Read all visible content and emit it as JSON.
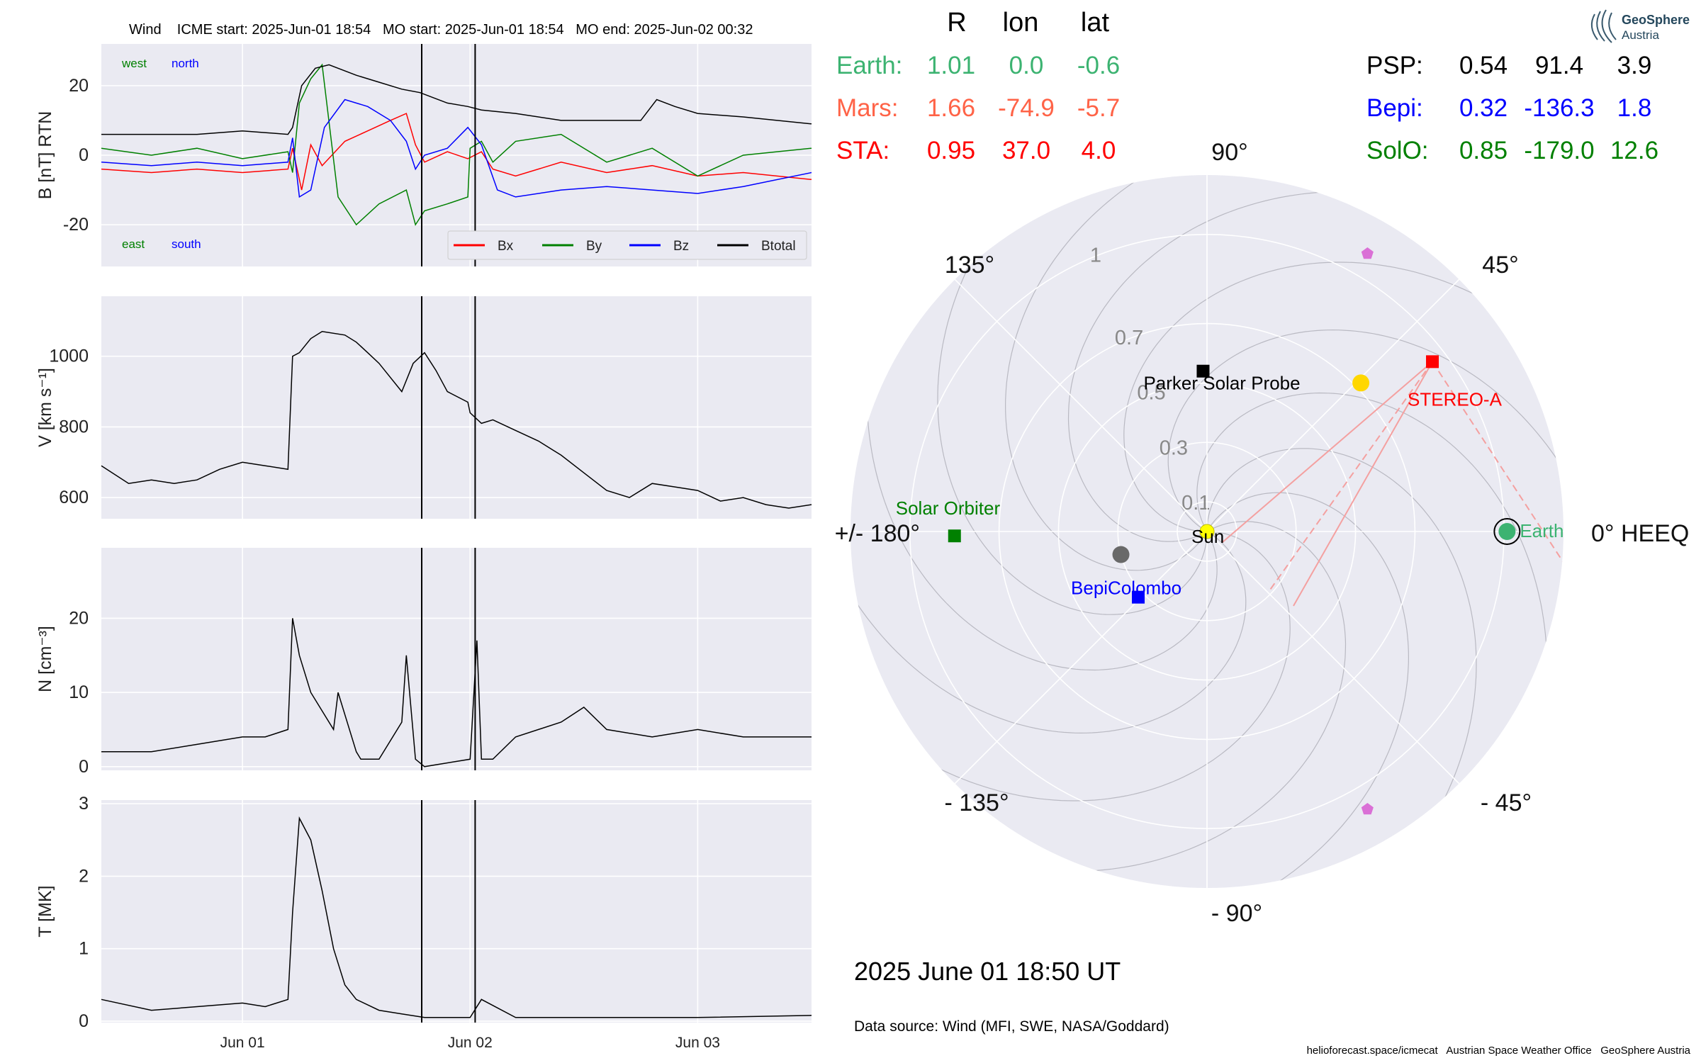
{
  "header": {
    "left_text": "Wind    ICME start: 2025-Jun-01 18:54   MO start: 2025-Jun-01 18:54   MO end: 2025-Jun-02 00:32"
  },
  "colors": {
    "panel_bg": "#EAEAF2",
    "grid": "#FFFFFF",
    "bx": "#FF0000",
    "by": "#008000",
    "bz": "#0000FF",
    "btot": "#000000",
    "earth": "#3CB371",
    "mars": "#FF6347",
    "sta": "#FF0000",
    "psp": "#000000",
    "bepi": "#0000FF",
    "solo": "#008000",
    "venus": "#FFD700",
    "mercury": "#696969",
    "sun": "#FFFF00",
    "comet": "#DA70D6"
  },
  "chart_data": [
    {
      "type": "line",
      "panel": "magnetic-field",
      "ylabel": "B [nT] RTN",
      "ylim": [
        -32,
        32
      ],
      "yticks": [
        -20,
        0,
        20
      ],
      "xlim": [
        -0.62,
        2.5
      ],
      "x_unit": "days since 2025-Jun-01 00:00",
      "annotations": {
        "west": "west",
        "north": "north",
        "east": "east",
        "south": "south"
      },
      "legend": [
        "Bx",
        "By",
        "Bz",
        "Btotal"
      ],
      "legend_position": "lower-right",
      "series": [
        {
          "name": "Bx",
          "color": "#FF0000",
          "x": [
            -0.62,
            -0.4,
            -0.2,
            0.0,
            0.2,
            0.22,
            0.26,
            0.3,
            0.35,
            0.45,
            0.55,
            0.65,
            0.72,
            0.76,
            0.8,
            0.9,
            0.99,
            1.05,
            1.1,
            1.2,
            1.4,
            1.6,
            1.8,
            2.0,
            2.2,
            2.5
          ],
          "y": [
            -4,
            -5,
            -4,
            -5,
            -4,
            2,
            -10,
            3,
            -3,
            4,
            7,
            10,
            12,
            3,
            -2,
            1,
            -1,
            1,
            -4,
            -6,
            -2,
            -5,
            -3,
            -6,
            -5,
            -7
          ]
        },
        {
          "name": "By",
          "color": "#008000",
          "x": [
            -0.62,
            -0.4,
            -0.2,
            0.0,
            0.2,
            0.22,
            0.25,
            0.3,
            0.35,
            0.42,
            0.5,
            0.6,
            0.72,
            0.76,
            0.8,
            0.9,
            0.99,
            1.0,
            1.05,
            1.1,
            1.2,
            1.4,
            1.6,
            1.8,
            2.0,
            2.2,
            2.5
          ],
          "y": [
            2,
            0,
            2,
            -1,
            1,
            -5,
            15,
            22,
            26,
            -12,
            -20,
            -14,
            -10,
            -20,
            -16,
            -14,
            -12,
            2,
            4,
            -2,
            4,
            6,
            -2,
            2,
            -6,
            0,
            2
          ]
        },
        {
          "name": "Bz",
          "color": "#0000FF",
          "x": [
            -0.62,
            -0.4,
            -0.2,
            0.0,
            0.2,
            0.22,
            0.25,
            0.3,
            0.36,
            0.45,
            0.55,
            0.65,
            0.72,
            0.76,
            0.8,
            0.9,
            0.99,
            1.05,
            1.12,
            1.2,
            1.4,
            1.6,
            1.8,
            2.0,
            2.2,
            2.5
          ],
          "y": [
            -2,
            -3,
            -2,
            -3,
            -2,
            5,
            -12,
            -10,
            8,
            16,
            14,
            10,
            4,
            -4,
            0,
            2,
            8,
            3,
            -10,
            -12,
            -10,
            -9,
            -10,
            -11,
            -9,
            -5
          ]
        },
        {
          "name": "Btotal",
          "color": "#000000",
          "x": [
            -0.62,
            -0.4,
            -0.2,
            0.0,
            0.2,
            0.22,
            0.26,
            0.32,
            0.38,
            0.5,
            0.6,
            0.7,
            0.78,
            0.9,
            0.99,
            1.05,
            1.2,
            1.4,
            1.6,
            1.75,
            1.82,
            1.9,
            2.0,
            2.2,
            2.5
          ],
          "y": [
            6,
            6,
            6,
            7,
            6,
            8,
            20,
            25,
            26,
            23,
            21,
            19,
            18,
            15,
            14,
            13,
            12,
            10,
            10,
            10,
            16,
            14,
            12,
            11,
            9
          ]
        }
      ]
    },
    {
      "type": "line",
      "panel": "speed",
      "ylabel": "V [km s⁻¹]",
      "ylim": [
        540,
        1170
      ],
      "yticks": [
        600,
        800,
        1000
      ],
      "xlim": [
        -0.62,
        2.5
      ],
      "series": [
        {
          "name": "V",
          "color": "#000000",
          "x": [
            -0.62,
            -0.5,
            -0.4,
            -0.3,
            -0.2,
            -0.1,
            0.0,
            0.1,
            0.2,
            0.22,
            0.25,
            0.3,
            0.35,
            0.45,
            0.5,
            0.55,
            0.6,
            0.7,
            0.75,
            0.8,
            0.85,
            0.9,
            0.99,
            1.0,
            1.05,
            1.1,
            1.2,
            1.3,
            1.4,
            1.5,
            1.6,
            1.7,
            1.8,
            1.9,
            2.0,
            2.1,
            2.2,
            2.3,
            2.4,
            2.5
          ],
          "y": [
            690,
            640,
            650,
            640,
            650,
            680,
            700,
            690,
            680,
            1000,
            1010,
            1050,
            1070,
            1060,
            1040,
            1010,
            980,
            900,
            980,
            1010,
            960,
            900,
            870,
            840,
            810,
            820,
            790,
            760,
            720,
            670,
            620,
            600,
            640,
            630,
            620,
            590,
            600,
            580,
            570,
            580
          ]
        }
      ]
    },
    {
      "type": "line",
      "panel": "density",
      "ylabel": "N [cm⁻³]",
      "ylim": [
        -0.5,
        29.5
      ],
      "yticks": [
        0,
        10,
        20
      ],
      "xlim": [
        -0.62,
        2.5
      ],
      "series": [
        {
          "name": "N",
          "color": "#000000",
          "x": [
            -0.62,
            -0.4,
            -0.2,
            0.0,
            0.1,
            0.2,
            0.22,
            0.25,
            0.3,
            0.4,
            0.42,
            0.5,
            0.52,
            0.6,
            0.7,
            0.72,
            0.76,
            0.8,
            1.0,
            1.03,
            1.05,
            1.1,
            1.2,
            1.4,
            1.5,
            1.6,
            1.8,
            2.0,
            2.2,
            2.5
          ],
          "y": [
            2,
            2,
            3,
            4,
            4,
            5,
            20,
            15,
            10,
            5,
            10,
            2,
            1,
            1,
            6,
            15,
            1,
            0,
            1,
            17,
            1,
            1,
            4,
            6,
            8,
            5,
            4,
            5,
            4,
            4
          ]
        }
      ]
    },
    {
      "type": "line",
      "panel": "temperature",
      "ylabel": "T [MK]",
      "ylim": [
        -0.02,
        3.05
      ],
      "yticks": [
        0,
        1,
        2,
        3
      ],
      "xlim": [
        -0.62,
        2.5
      ],
      "xticks": [
        "Jun 01",
        "Jun 02",
        "Jun 03"
      ],
      "xtick_values": [
        0,
        1,
        2
      ],
      "markers": [
        {
          "label": "MO start",
          "x": 0.7875
        },
        {
          "label": "MO end",
          "x": 1.0222
        }
      ],
      "series": [
        {
          "name": "T",
          "color": "#000000",
          "x": [
            -0.62,
            -0.4,
            -0.2,
            0.0,
            0.1,
            0.2,
            0.22,
            0.25,
            0.3,
            0.35,
            0.4,
            0.45,
            0.5,
            0.6,
            0.7,
            0.8,
            1.0,
            1.05,
            1.2,
            1.5,
            2.0,
            2.5
          ],
          "y": [
            0.3,
            0.15,
            0.2,
            0.25,
            0.2,
            0.3,
            1.5,
            2.8,
            2.5,
            1.8,
            1.0,
            0.5,
            0.3,
            0.15,
            0.1,
            0.05,
            0.05,
            0.3,
            0.05,
            0.05,
            0.05,
            0.08
          ]
        }
      ]
    },
    {
      "type": "polar",
      "panel": "heliosphere",
      "coordinate_system": "HEEQ",
      "rlim": [
        0,
        1.2
      ],
      "rticks": [
        0.1,
        0.3,
        0.5,
        0.7,
        1.0
      ],
      "angle_labels": {
        "a0": "0° HEEQ",
        "a45": "45°",
        "a90": "90°",
        "a135": "135°",
        "a180": "+/- 180°",
        "am135": "- 135°",
        "am90": "- 90°",
        "am45": "- 45°"
      },
      "bodies": [
        {
          "name": "Earth",
          "label": "Earth",
          "r": 1.01,
          "lon": 0.0,
          "color": "#3CB371",
          "shape": "circle"
        },
        {
          "name": "STEREO-A",
          "label": "STEREO-A",
          "r": 0.95,
          "lon": 37.0,
          "color": "#FF0000",
          "shape": "square"
        },
        {
          "name": "Parker Solar Probe",
          "label": "Parker Solar Probe",
          "r": 0.54,
          "lon": 91.4,
          "color": "#000000",
          "shape": "square"
        },
        {
          "name": "BepiColombo",
          "label": "BepiColombo",
          "r": 0.32,
          "lon": -136.3,
          "color": "#0000FF",
          "shape": "square"
        },
        {
          "name": "Solar Orbiter",
          "label": "Solar Orbiter",
          "r": 0.85,
          "lon": -179.0,
          "color": "#008000",
          "shape": "square"
        },
        {
          "name": "Venus",
          "label": "",
          "r": 0.72,
          "lon": 44,
          "color": "#FFD700",
          "shape": "circle"
        },
        {
          "name": "Mercury",
          "label": "",
          "r": 0.3,
          "lon": -165,
          "color": "#696969",
          "shape": "circle"
        },
        {
          "name": "Sun",
          "label": "Sun",
          "r": 0.0,
          "lon": 0.0,
          "color": "#FFFF00",
          "shape": "circle"
        },
        {
          "name": "object-a",
          "label": "",
          "r": 1.08,
          "lon": 60,
          "color": "#DA70D6",
          "shape": "pentagon"
        },
        {
          "name": "object-b",
          "label": "",
          "r": 1.08,
          "lon": -60,
          "color": "#DA70D6",
          "shape": "pentagon"
        }
      ]
    }
  ],
  "positions_table": {
    "header": {
      "r": "R",
      "lon": "lon",
      "lat": "lat"
    },
    "left": [
      {
        "name": "Earth:",
        "r": "1.01",
        "lon": "0.0",
        "lat": "-0.6",
        "color": "#3CB371"
      },
      {
        "name": "Mars:",
        "r": "1.66",
        "lon": "-74.9",
        "lat": "-5.7",
        "color": "#FF6347"
      },
      {
        "name": "STA:",
        "r": "0.95",
        "lon": "37.0",
        "lat": "4.0",
        "color": "#FF0000"
      }
    ],
    "right": [
      {
        "name": "PSP:",
        "r": "0.54",
        "lon": "91.4",
        "lat": "3.9",
        "color": "#000000"
      },
      {
        "name": "Bepi:",
        "r": "0.32",
        "lon": "-136.3",
        "lat": "1.8",
        "color": "#0000FF"
      },
      {
        "name": "SolO:",
        "r": "0.85",
        "lon": "-179.0",
        "lat": "12.6",
        "color": "#008000"
      }
    ]
  },
  "logo": {
    "line1": "GeoSphere",
    "line2": "Austria"
  },
  "date_label": "2025 June 01  18:50 UT",
  "data_source": "Data source: Wind (MFI, SWE, NASA/Goddard)",
  "footer": "helioforecast.space/icmecat   Austrian Space Weather Office   GeoSphere Austria"
}
